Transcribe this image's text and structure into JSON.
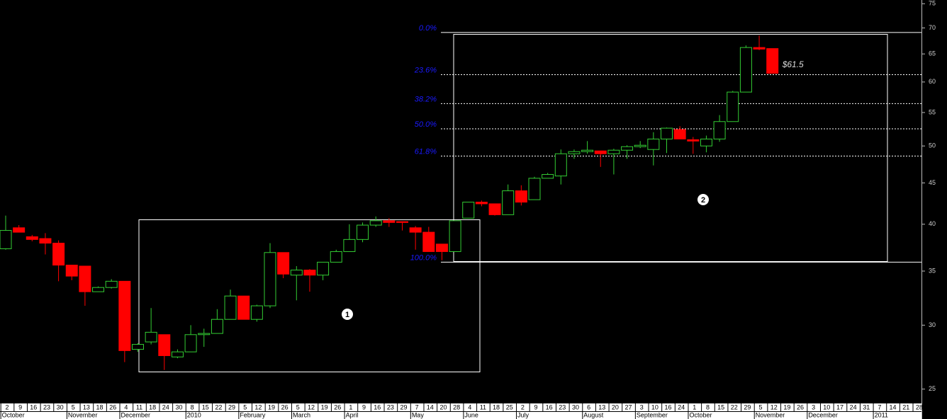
{
  "chart_data": {
    "type": "candlestick",
    "log_scale": true,
    "up_color": "#33cc33",
    "down_color": "#ff0000",
    "ylim": [
      24.0,
      75.8
    ],
    "yticks": [
      25,
      30,
      35,
      40,
      45,
      50,
      55,
      60,
      65,
      70,
      75
    ],
    "categories": [
      "2",
      "9",
      "16",
      "23",
      "30",
      "5",
      "13",
      "18",
      "26",
      "4",
      "11",
      "18",
      "24",
      "30",
      "8",
      "15",
      "22",
      "29",
      "5",
      "12",
      "19",
      "26",
      "5",
      "12",
      "19",
      "26",
      "1",
      "9",
      "16",
      "23",
      "29",
      "7",
      "14",
      "20",
      "28",
      "4",
      "11",
      "18",
      "25",
      "2",
      "9",
      "16",
      "23",
      "30",
      "6",
      "13",
      "20",
      "27",
      "3",
      "10",
      "16",
      "24",
      "1",
      "8",
      "15",
      "22",
      "29",
      "5",
      "12",
      "19",
      "26",
      "3",
      "10",
      "17",
      "24",
      "31",
      "7",
      "14",
      "21",
      "28"
    ],
    "months": [
      "October",
      null,
      null,
      null,
      null,
      "November",
      null,
      null,
      null,
      "December",
      null,
      null,
      null,
      null,
      "2010",
      null,
      null,
      null,
      "February",
      null,
      null,
      null,
      "March",
      null,
      null,
      null,
      "April",
      null,
      null,
      null,
      null,
      "May",
      null,
      null,
      null,
      "June",
      null,
      null,
      null,
      "July",
      null,
      null,
      null,
      null,
      "August",
      null,
      null,
      null,
      "September",
      null,
      null,
      null,
      "October",
      null,
      null,
      null,
      null,
      "November",
      null,
      null,
      null,
      "December",
      null,
      null,
      null,
      null,
      "2011",
      null,
      null,
      null
    ],
    "open": [
      37.3,
      39.6,
      38.6,
      38.4,
      37.9,
      35.6,
      35.5,
      33.0,
      33.4,
      34.0,
      28.0,
      28.6,
      29.2,
      27.4,
      27.8,
      29.2,
      29.3,
      30.5,
      32.6,
      30.5,
      31.7,
      36.9,
      34.6,
      35.1,
      34.6,
      35.9,
      37.0,
      38.3,
      39.9,
      40.4,
      40.3,
      39.6,
      39.1,
      37.8,
      37.0,
      40.7,
      42.6,
      42.4,
      41.1,
      44.0,
      42.9,
      45.6,
      45.9,
      48.9,
      49.2,
      49.3,
      48.9,
      49.4,
      49.9,
      49.5,
      51.0,
      52.4,
      50.9,
      50.0,
      51.0,
      53.6,
      58.3,
      66.2,
      66.0,
      null,
      null,
      null,
      null,
      null,
      null,
      null,
      null,
      null,
      null,
      null
    ],
    "high": [
      41.0,
      39.9,
      38.8,
      39.0,
      38.2,
      35.6,
      35.5,
      33.5,
      34.2,
      34.0,
      28.5,
      31.5,
      29.2,
      28.0,
      30.0,
      29.7,
      31.4,
      33.2,
      32.6,
      31.8,
      37.9,
      36.9,
      35.5,
      35.2,
      35.9,
      37.2,
      40.0,
      40.2,
      40.9,
      40.7,
      40.3,
      39.8,
      39.7,
      37.8,
      40.4,
      42.6,
      42.8,
      42.4,
      44.8,
      44.7,
      45.8,
      46.3,
      49.5,
      49.5,
      50.7,
      49.3,
      49.6,
      50.1,
      50.7,
      52.0,
      52.7,
      52.9,
      51.3,
      51.5,
      54.6,
      58.5,
      66.6,
      68.5,
      66.0,
      null,
      null,
      null,
      null,
      null,
      null,
      null,
      null,
      null,
      null,
      null
    ],
    "low": [
      37.2,
      39.1,
      38.1,
      36.7,
      34.0,
      34.1,
      31.7,
      33.1,
      33.3,
      27.0,
      27.8,
      28.4,
      26.4,
      27.3,
      27.8,
      28.2,
      29.3,
      30.5,
      30.5,
      30.3,
      31.5,
      34.3,
      32.2,
      33.0,
      34.1,
      35.9,
      37.0,
      38.0,
      39.7,
      39.7,
      39.3,
      37.2,
      37.0,
      36.1,
      37.0,
      40.7,
      42.1,
      41.0,
      41.1,
      42.2,
      42.9,
      45.6,
      44.8,
      48.2,
      48.9,
      47.1,
      46.1,
      48.2,
      49.7,
      47.3,
      49.0,
      51.0,
      48.9,
      49.1,
      50.6,
      53.6,
      58.3,
      65.7,
      61.5,
      null,
      null,
      null,
      null,
      null,
      null,
      null,
      null,
      null,
      null,
      null
    ],
    "close": [
      39.3,
      39.1,
      38.3,
      37.9,
      35.6,
      34.5,
      33.0,
      33.4,
      34.0,
      27.9,
      28.4,
      29.4,
      27.5,
      27.8,
      29.2,
      29.3,
      30.5,
      32.6,
      30.5,
      31.7,
      36.9,
      34.7,
      35.1,
      34.6,
      35.9,
      37.0,
      38.3,
      39.9,
      40.4,
      40.2,
      40.2,
      39.1,
      37.0,
      37.0,
      40.4,
      42.6,
      42.4,
      41.1,
      44.0,
      42.6,
      45.6,
      46.1,
      48.9,
      49.2,
      49.4,
      48.9,
      49.4,
      49.9,
      50.1,
      51.0,
      52.6,
      51.0,
      50.7,
      51.0,
      53.6,
      58.3,
      66.2,
      65.9,
      61.5,
      null,
      null,
      null,
      null,
      null,
      null,
      null,
      null,
      null,
      null,
      null
    ],
    "fibonacci": {
      "high": 69.1,
      "low": 35.9,
      "levels": [
        {
          "value": 0,
          "label": "0.0%"
        },
        {
          "value": 23.6,
          "label": "23.6%"
        },
        {
          "value": 38.2,
          "label": "38.2%"
        },
        {
          "value": 50,
          "label": "50.0%"
        },
        {
          "value": 61.8,
          "label": "61.8%"
        },
        {
          "value": 100,
          "label": "100.0%"
        }
      ]
    },
    "price_label": {
      "value": 61.5,
      "label": "$61.5"
    },
    "markers": [
      "1",
      "2"
    ]
  }
}
